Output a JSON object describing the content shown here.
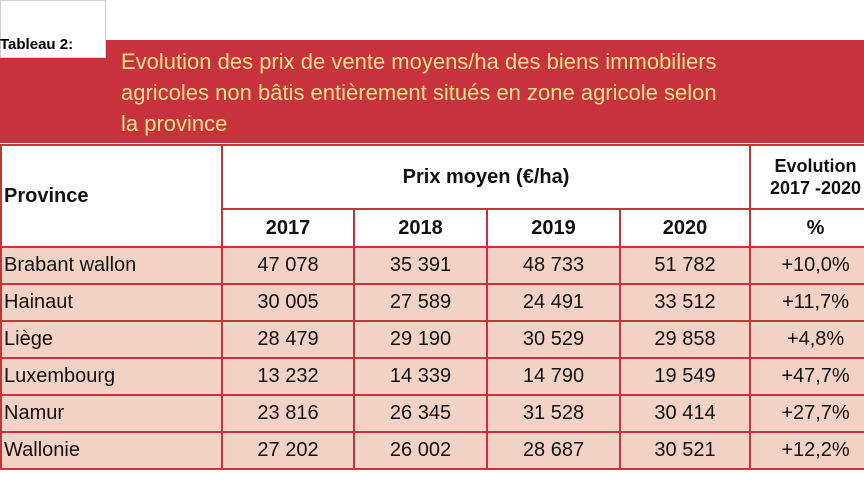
{
  "label": "Tableau 2:",
  "title": {
    "line1": "Evolution des prix de vente moyens/ha des biens immobiliers",
    "line2": "agricoles non bâtis entièrement situés en zone agricole selon",
    "line3": "la province"
  },
  "table": {
    "province_header": "Province",
    "price_header": "Prix moyen (€/ha)",
    "evolution_header_line1": "Evolution",
    "evolution_header_line2": "2017 -2020",
    "years": [
      "2017",
      "2018",
      "2019",
      "2020"
    ],
    "unit": "%",
    "rows": [
      {
        "name": "Brabant wallon",
        "values": [
          "47 078",
          "35 391",
          "48 733",
          "51 782"
        ],
        "evolution": "+10,0%"
      },
      {
        "name": "Hainaut",
        "values": [
          "30 005",
          "27 589",
          "24 491",
          "33 512"
        ],
        "evolution": "+11,7%"
      },
      {
        "name": "Liège",
        "values": [
          "28 479",
          "29 190",
          "30 529",
          "29 858"
        ],
        "evolution": "+4,8%"
      },
      {
        "name": "Luxembourg",
        "values": [
          "13 232",
          "14 339",
          "14 790",
          "19 549"
        ],
        "evolution": "+47,7%"
      },
      {
        "name": "Namur",
        "values": [
          "23 816",
          "26 345",
          "31 528",
          "30 414"
        ],
        "evolution": "+27,7%"
      },
      {
        "name": "Wallonie",
        "values": [
          "27 202",
          "26 002",
          "28 687",
          "30 521"
        ],
        "evolution": "+12,2%"
      }
    ]
  }
}
